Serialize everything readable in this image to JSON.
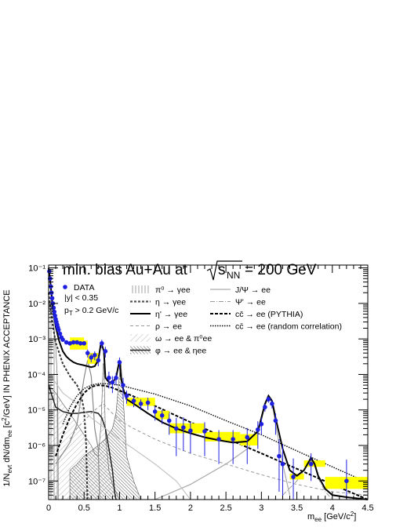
{
  "chart_data": {
    "type": "line",
    "title_prefix": "min. bias Au+Au at",
    "title_energy": "= 200 GeV",
    "title_sqrt_sub": "NN",
    "ylabel": "1/N_evt dN/dm_ee [c²/GeV] IN PHENIX ACCEPTANCE",
    "xlabel": "m_ee [GeV/c²]",
    "xlim": [
      0,
      4.5
    ],
    "ylim": [
      3e-08,
      0.12
    ],
    "yscale": "log",
    "x_ticks": [
      "0",
      "0.5",
      "1",
      "1.5",
      "2",
      "2.5",
      "3",
      "3.5",
      "4",
      "4.5"
    ],
    "y_ticks": [
      "10⁻⁷",
      "10⁻⁶",
      "10⁻⁵",
      "10⁻⁴",
      "10⁻³",
      "10⁻²",
      "10⁻¹"
    ],
    "notes": [
      "|y| < 0.35",
      "p_T > 0.2 GeV/c"
    ],
    "legend": {
      "col1": [
        {
          "name": "DATA",
          "style": "marker"
        },
        {
          "name": "π⁰ → γee",
          "style": "hatch-vertical"
        },
        {
          "name": "η → γee",
          "style": "dashed-thick"
        },
        {
          "name": "η' → γee",
          "style": "solid-thick"
        },
        {
          "name": "ρ → ee",
          "style": "dashed-light"
        },
        {
          "name": "ω → ee & π⁰ee",
          "style": "hatch-diagonal"
        },
        {
          "name": "φ → ee & ηee",
          "style": "hatch-dark"
        }
      ],
      "col2": [
        {
          "name": "J/Ψ → ee",
          "style": "solid-light"
        },
        {
          "name": "Ψ' → ee",
          "style": "dashdot-light"
        },
        {
          "name": "cc̄ → ee (PYTHIA)",
          "style": "dashed-black"
        },
        {
          "name": "cc̄ → ee (random correlation)",
          "style": "dotted-black"
        }
      ]
    },
    "colors": {
      "data": "#1f1fe0",
      "sys_box": "#ffff00",
      "cocktail": "#000000",
      "components": "#777777"
    },
    "data_points": {
      "x": [
        0.01,
        0.02,
        0.03,
        0.04,
        0.05,
        0.06,
        0.07,
        0.08,
        0.09,
        0.1,
        0.11,
        0.12,
        0.13,
        0.14,
        0.16,
        0.18,
        0.2,
        0.25,
        0.3,
        0.35,
        0.4,
        0.45,
        0.5,
        0.55,
        0.6,
        0.65,
        0.7,
        0.75,
        0.8,
        0.85,
        0.9,
        0.95,
        1.0,
        1.05,
        1.1,
        1.2,
        1.3,
        1.4,
        1.5,
        1.6,
        1.7,
        1.8,
        1.9,
        2.0,
        2.2,
        2.4,
        2.6,
        2.8,
        2.95,
        3.0,
        3.05,
        3.1,
        3.15,
        3.2,
        3.25,
        3.3,
        3.45,
        3.7,
        4.2
      ],
      "y": [
        0.08,
        0.05,
        0.03,
        0.02,
        0.014,
        0.01,
        0.0075,
        0.0058,
        0.0045,
        0.0036,
        0.003,
        0.0025,
        0.0021,
        0.0018,
        0.0014,
        0.0011,
        0.00095,
        0.0008,
        0.00075,
        0.0008,
        0.0008,
        0.00075,
        0.00075,
        0.0004,
        0.0003,
        0.00035,
        0.00025,
        0.00075,
        0.00045,
        8e-05,
        6e-05,
        8e-05,
        0.00022,
        5e-05,
        2.5e-05,
        1.8e-05,
        1.5e-05,
        1.6e-05,
        9e-06,
        7e-06,
        5e-06,
        3e-06,
        3.2e-06,
        2.6e-06,
        2.5e-06,
        1.5e-06,
        1.5e-06,
        1.7e-06,
        2.8e-06,
        4e-06,
        1.2e-05,
        2e-05,
        1.5e-05,
        5e-06,
        5e-07,
        3e-07,
        1.3e-07,
        3e-07,
        1e-07
      ],
      "yerr_low": [
        0,
        0,
        0,
        0,
        0,
        0,
        0,
        0,
        0,
        0,
        0,
        0,
        0,
        0,
        0,
        0,
        0.0001,
        0.0001,
        0.0001,
        0.0001,
        0.0001,
        0.0001,
        0.0001,
        0.0001,
        8e-05,
        0.0001,
        8e-05,
        0.0002,
        0.00015,
        4e-05,
        3e-05,
        3e-05,
        8e-05,
        3e-05,
        1e-05,
        6e-06,
        5e-06,
        6e-06,
        4e-06,
        3e-06,
        3e-06,
        2.5e-06,
        2.5e-06,
        2e-06,
        2e-06,
        1.2e-06,
        1.2e-06,
        1.4e-06,
        2e-06,
        2e-06,
        3e-06,
        4e-06,
        4e-06,
        3e-06,
        4.5e-07,
        2.7e-07,
        1e-07,
        2e-07,
        7e-08
      ],
      "yerr_high": [
        0,
        0,
        0,
        0,
        0,
        0,
        0,
        0,
        0,
        0,
        0,
        0,
        0,
        0,
        0,
        0,
        0.0001,
        0.0001,
        0.0001,
        0.0001,
        0.0001,
        0.0001,
        0.0001,
        0.0001,
        8e-05,
        0.0001,
        8e-05,
        0.0002,
        0.00015,
        4e-05,
        3e-05,
        3e-05,
        8e-05,
        3e-05,
        1e-05,
        6e-06,
        5e-06,
        6e-06,
        4e-06,
        3e-06,
        3e-06,
        3e-06,
        3e-06,
        2e-06,
        2e-06,
        1.2e-06,
        1.2e-06,
        1.4e-06,
        2e-06,
        2e-06,
        3e-06,
        4e-06,
        4e-06,
        3e-06,
        1e-06,
        8e-07,
        3e-07,
        3e-07,
        3e-07
      ]
    },
    "sys_boxes": [
      {
        "x0": 0.3,
        "x1": 0.5,
        "y0": 0.0005,
        "y1": 0.0011
      },
      {
        "x0": 0.5,
        "x1": 0.55,
        "y0": 0.0005,
        "y1": 0.0009
      },
      {
        "x0": 0.55,
        "x1": 0.7,
        "y0": 0.0002,
        "y1": 0.0004
      },
      {
        "x0": 1.1,
        "x1": 1.5,
        "y0": 1.3e-05,
        "y1": 2.2e-05
      },
      {
        "x0": 1.5,
        "x1": 1.7,
        "y0": 5.5e-06,
        "y1": 9.5e-06
      },
      {
        "x0": 1.7,
        "x1": 2.2,
        "y0": 2.2e-06,
        "y1": 4.2e-06
      },
      {
        "x0": 2.2,
        "x1": 2.7,
        "y0": 1.3e-06,
        "y1": 2.4e-06
      },
      {
        "x0": 2.7,
        "x1": 2.95,
        "y0": 1e-06,
        "y1": 2.1e-06
      },
      {
        "x0": 3.4,
        "x1": 3.6,
        "y0": 1.1e-07,
        "y1": 1.6e-07
      },
      {
        "x0": 3.6,
        "x1": 3.9,
        "y0": 2.5e-07,
        "y1": 3.8e-07
      },
      {
        "x0": 3.9,
        "x1": 4.5,
        "y0": 6e-08,
        "y1": 1.3e-07
      }
    ],
    "cocktail_sum": {
      "x": [
        0.0,
        0.02,
        0.05,
        0.1,
        0.15,
        0.2,
        0.25,
        0.3,
        0.35,
        0.4,
        0.45,
        0.5,
        0.55,
        0.6,
        0.65,
        0.7,
        0.74,
        0.78,
        0.8,
        0.85,
        0.9,
        0.95,
        1.0,
        1.02,
        1.05,
        1.1,
        1.2,
        1.4,
        1.6,
        1.8,
        2.0,
        2.2,
        2.4,
        2.6,
        2.8,
        2.95,
        3.0,
        3.05,
        3.1,
        3.15,
        3.2,
        3.3,
        3.4,
        3.5,
        3.6,
        3.65,
        3.7,
        3.75,
        3.8,
        3.9,
        4.0,
        4.2,
        4.5
      ],
      "y": [
        0.1,
        0.05,
        0.012,
        0.0022,
        0.00085,
        0.00045,
        0.00032,
        0.00026,
        0.00022,
        0.0002,
        0.00019,
        0.00018,
        0.00017,
        0.00016,
        0.00017,
        0.00025,
        0.0008,
        0.00045,
        8e-05,
        6e-05,
        6e-05,
        8e-05,
        0.00025,
        8e-05,
        4e-05,
        2e-05,
        1.5e-05,
        8e-06,
        4.5e-06,
        3e-06,
        2.2e-06,
        1.7e-06,
        1.4e-06,
        1.2e-06,
        1.3e-06,
        2.5e-06,
        6e-06,
        1.5e-05,
        2.5e-05,
        1.8e-05,
        6e-06,
        8e-07,
        2e-07,
        1.4e-07,
        2e-07,
        3e-07,
        4.5e-07,
        3e-07,
        1.4e-07,
        6e-08,
        4e-08,
        3.5e-08,
        3e-08
      ]
    }
  }
}
